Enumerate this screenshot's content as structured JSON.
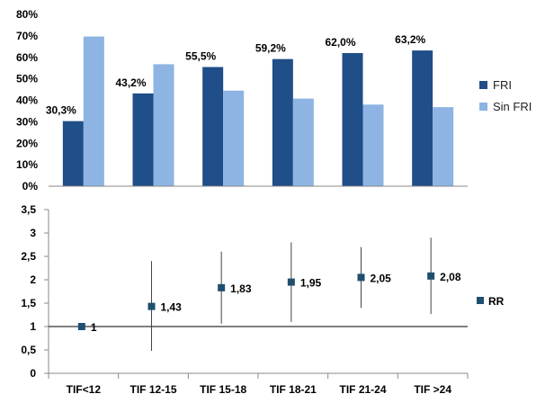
{
  "chart_data": [
    {
      "type": "bar",
      "categories": [
        "TIF<12",
        "TIF 12-15",
        "TIF 15-18",
        "TIF 18-21",
        "TIF 21-24",
        "TIF >24"
      ],
      "series": [
        {
          "name": "FRI",
          "values": [
            30.3,
            43.2,
            55.5,
            59.2,
            62.0,
            63.2
          ],
          "labels": [
            "30,3%",
            "43,2%",
            "55,5%",
            "59,2%",
            "62,0%",
            "63,2%"
          ],
          "color": "#1f4e88"
        },
        {
          "name": "Sin FRI",
          "values": [
            69.7,
            56.8,
            44.5,
            40.8,
            38.0,
            36.8
          ],
          "color": "#8db4e2"
        }
      ],
      "ylim": [
        0,
        80
      ],
      "yticks": [
        "0%",
        "10%",
        "20%",
        "30%",
        "40%",
        "50%",
        "60%",
        "70%",
        "80%"
      ],
      "grid": false,
      "legend": "right"
    },
    {
      "type": "scatter",
      "categories": [
        "TIF<12",
        "TIF 12-15",
        "TIF 15-18",
        "TIF 18-21",
        "TIF 21-24",
        "TIF >24"
      ],
      "series": [
        {
          "name": "RR",
          "values": [
            1,
            1.43,
            1.83,
            1.95,
            2.05,
            2.08
          ],
          "labels": [
            "1",
            "1,43",
            "1,83",
            "1,95",
            "2,05",
            "2,08"
          ],
          "ci_low": [
            1,
            0.48,
            1.06,
            1.1,
            1.4,
            1.27
          ],
          "ci_high": [
            1,
            2.4,
            2.6,
            2.8,
            2.7,
            2.9
          ],
          "color": "#1f4e6e"
        }
      ],
      "reference_line": 1,
      "ylim": [
        0,
        3.5
      ],
      "yticks": [
        "0",
        "0,5",
        "1",
        "1,5",
        "2",
        "2,5",
        "3",
        "3,5"
      ],
      "legend": "right"
    }
  ]
}
